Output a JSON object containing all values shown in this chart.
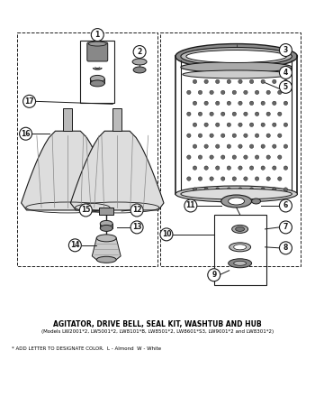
{
  "title": "AGITATOR, DRIVE BELL, SEAL KIT, WASHTUB AND HUB",
  "subtitle": "(Models LW2001*2, LW5001*2, LW8101*B, LW8501*2, LW8601*S3, LW9001*2 and LW8301*2)",
  "footnote": "* ADD LETTER TO DESIGNATE COLOR.  L - Almond  W - White",
  "bg_color": "#ffffff",
  "text_color": "#000000",
  "dc": "#1a1a1a"
}
